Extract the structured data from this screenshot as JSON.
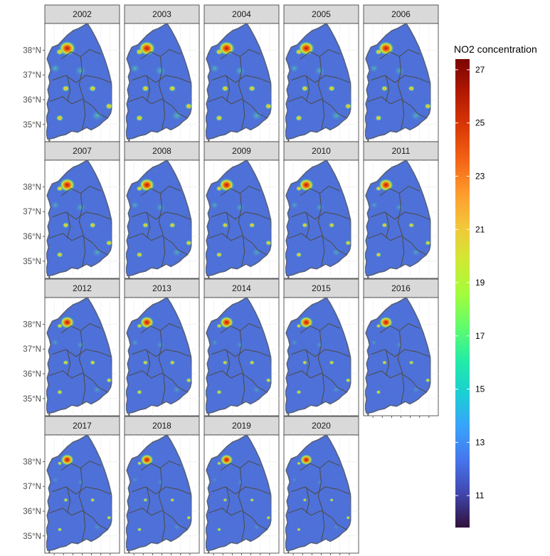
{
  "figure": {
    "type": "faceted choropleth map",
    "region": "South Korea",
    "layout": "4 rows x 5 columns facet grid"
  },
  "panels": [
    {
      "label": "2002"
    },
    {
      "label": "2003"
    },
    {
      "label": "2004"
    },
    {
      "label": "2005"
    },
    {
      "label": "2006"
    },
    {
      "label": "2007"
    },
    {
      "label": "2008"
    },
    {
      "label": "2009"
    },
    {
      "label": "2010"
    },
    {
      "label": "2011"
    },
    {
      "label": "2012"
    },
    {
      "label": "2013"
    },
    {
      "label": "2014"
    },
    {
      "label": "2015"
    },
    {
      "label": "2016"
    },
    {
      "label": "2017"
    },
    {
      "label": "2018"
    },
    {
      "label": "2019"
    },
    {
      "label": "2020"
    }
  ],
  "y_axis": {
    "tick_labels": [
      "38°N",
      "37°N",
      "36°N",
      "35°N"
    ],
    "tick_values": [
      38,
      37,
      36,
      35
    ]
  },
  "legend": {
    "title": "NO2 concentration",
    "min": 9.8,
    "max": 27.4,
    "tick_values": [
      27,
      25,
      23,
      21,
      19,
      17,
      15,
      13,
      11
    ],
    "colormap": "turbo",
    "colors": [
      "#30123b",
      "#4145ab",
      "#4675ed",
      "#39a2fc",
      "#1bcfd4",
      "#24eca6",
      "#61fc6c",
      "#a4fc3b",
      "#d1e834",
      "#f3c63a",
      "#fe9b2d",
      "#f36315",
      "#d93806",
      "#b11901",
      "#7a0403"
    ]
  },
  "map_colors": {
    "background_field": "#3f66e0",
    "boundary": "#4d4d4d",
    "facet_strip": "#d9d9d9",
    "panel_border": "#333333"
  }
}
